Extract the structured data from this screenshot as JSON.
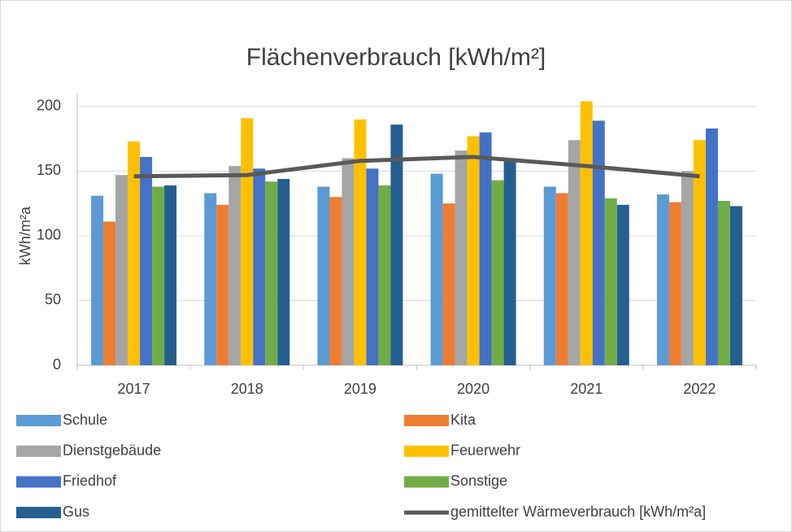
{
  "chart_data": {
    "type": "bar",
    "title": "Flächenverbrauch  [kWh/m²]",
    "y_label": "kWh/m²a",
    "categories": [
      "2017",
      "2018",
      "2019",
      "2020",
      "2021",
      "2022"
    ],
    "series": [
      {
        "name": "Schule",
        "color": "#5b9bd5",
        "values": [
          131,
          133,
          138,
          148,
          138,
          132
        ]
      },
      {
        "name": "Kita",
        "color": "#ed7d31",
        "values": [
          111,
          124,
          130,
          125,
          133,
          126
        ]
      },
      {
        "name": "Dienstgebäude",
        "color": "#a5a5a5",
        "values": [
          147,
          154,
          160,
          166,
          174,
          150
        ]
      },
      {
        "name": "Feuerwehr",
        "color": "#ffc000",
        "values": [
          173,
          191,
          190,
          177,
          204,
          174
        ]
      },
      {
        "name": "Friedhof",
        "color": "#4472c4",
        "values": [
          161,
          152,
          152,
          180,
          189,
          183
        ]
      },
      {
        "name": "Sonstige",
        "color": "#70ad47",
        "values": [
          138,
          142,
          139,
          143,
          129,
          127
        ]
      },
      {
        "name": "Gus",
        "color": "#255e91",
        "values": [
          139,
          144,
          186,
          158,
          124,
          123
        ]
      },
      {
        "name": "gemittelter Wärmeverbrauch [kWh/m²a]",
        "color": "#595959",
        "type": "line",
        "values": [
          146,
          147,
          158,
          161,
          154,
          146
        ]
      }
    ],
    "ylim": [
      0,
      210
    ],
    "yticks": [
      0,
      50,
      100,
      150,
      200
    ],
    "grid": true
  }
}
